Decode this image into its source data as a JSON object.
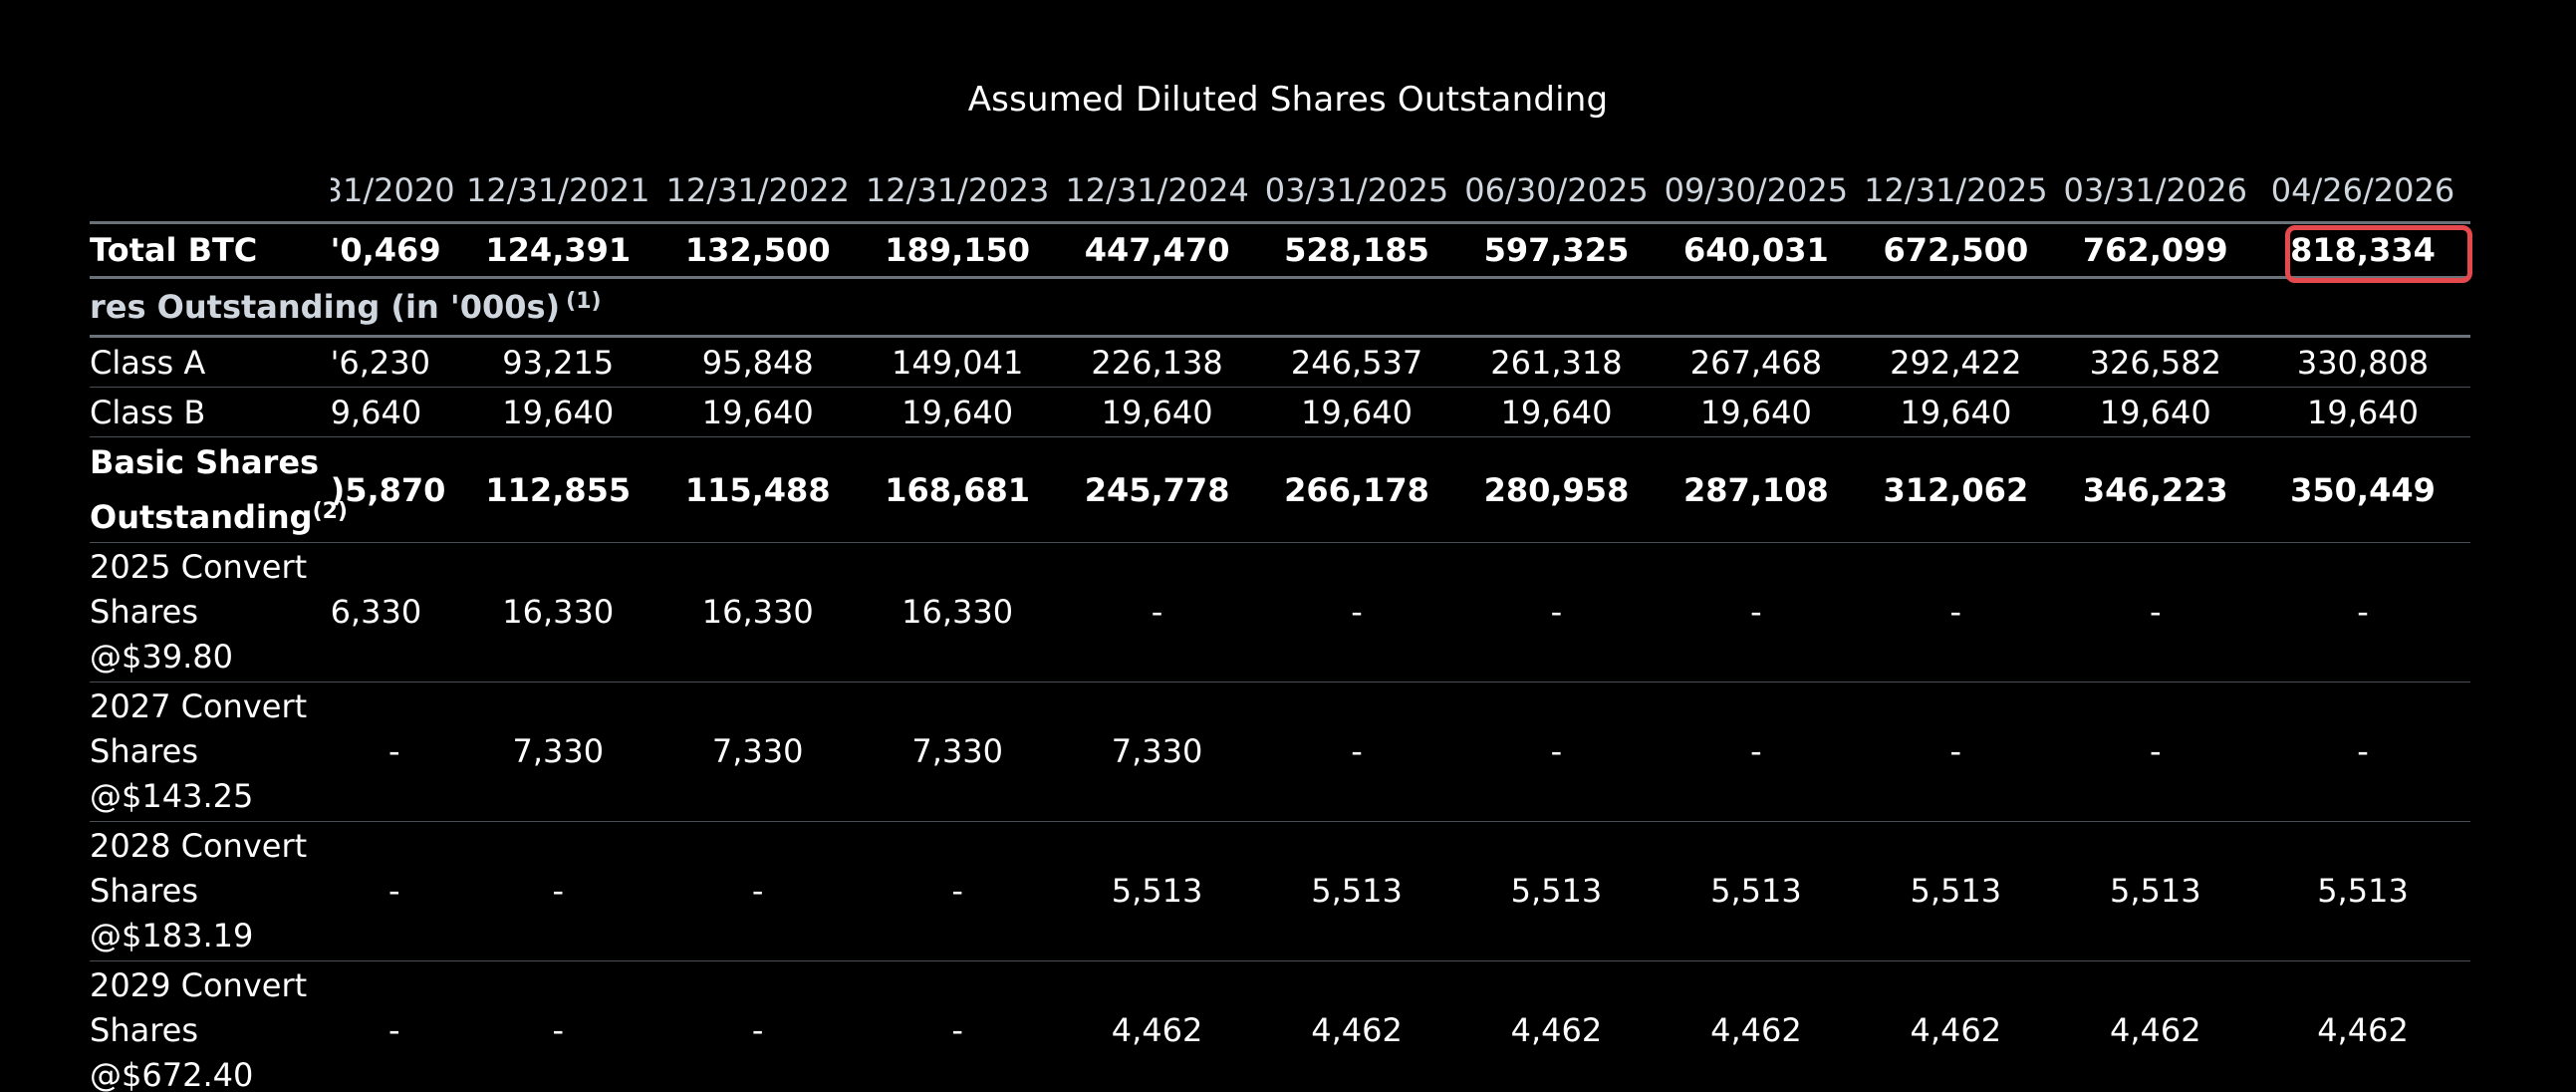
{
  "title": "Assumed Diluted Shares Outstanding",
  "columns": [
    "31/2020",
    "12/31/2021",
    "12/31/2022",
    "12/31/2023",
    "12/31/2024",
    "03/31/2025",
    "06/30/2025",
    "09/30/2025",
    "12/31/2025",
    "03/31/2026",
    "04/26/2026"
  ],
  "total_btc": {
    "label": "Total BTC",
    "values": [
      "'0,469",
      "124,391",
      "132,500",
      "189,150",
      "447,470",
      "528,185",
      "597,325",
      "640,031",
      "672,500",
      "762,099",
      "818,334"
    ]
  },
  "section": {
    "label": "res Outstanding (in '000s)",
    "note": "(1)"
  },
  "class_a": {
    "label": "Class A",
    "values": [
      "'6,230",
      "93,215",
      "95,848",
      "149,041",
      "226,138",
      "246,537",
      "261,318",
      "267,468",
      "292,422",
      "326,582",
      "330,808"
    ]
  },
  "class_b": {
    "label": "Class B",
    "values": [
      "9,640",
      "19,640",
      "19,640",
      "19,640",
      "19,640",
      "19,640",
      "19,640",
      "19,640",
      "19,640",
      "19,640",
      "19,640"
    ]
  },
  "basic": {
    "label_line1": "Basic Shares",
    "label_line2": "Outstanding",
    "note": "(2)",
    "values": [
      ")5,870",
      "112,855",
      "115,488",
      "168,681",
      "245,778",
      "266,178",
      "280,958",
      "287,108",
      "312,062",
      "346,223",
      "350,449"
    ]
  },
  "conv_2025": {
    "label_line1": "2025 Convert",
    "label_line2": "Shares",
    "label_line3": "@$39.80",
    "values": [
      "6,330",
      "16,330",
      "16,330",
      "16,330",
      "-",
      "-",
      "-",
      "-",
      "-",
      "-",
      "-"
    ]
  },
  "conv_2027": {
    "label_line1": "2027 Convert",
    "label_line2": "Shares",
    "label_line3": "@$143.25",
    "values": [
      "-",
      "7,330",
      "7,330",
      "7,330",
      "7,330",
      "-",
      "-",
      "-",
      "-",
      "-",
      "-"
    ]
  },
  "conv_2028": {
    "label_line1": "2028 Convert",
    "label_line2": "Shares",
    "label_line3": "@$183.19",
    "values": [
      "-",
      "-",
      "-",
      "-",
      "5,513",
      "5,513",
      "5,513",
      "5,513",
      "5,513",
      "5,513",
      "5,513"
    ]
  },
  "conv_2029": {
    "label_line1": "2029 Convert",
    "label_line2": "Shares",
    "label_line3": "@$672.40",
    "values": [
      "-",
      "-",
      "-",
      "-",
      "4,462",
      "4,462",
      "4,462",
      "4,462",
      "4,462",
      "4,462",
      "4,462"
    ]
  },
  "colors": {
    "background": "#000000",
    "text": "#ffffff",
    "header_text": "#cfd6de",
    "highlight": "#e5484d",
    "rule": "#6b727a"
  }
}
